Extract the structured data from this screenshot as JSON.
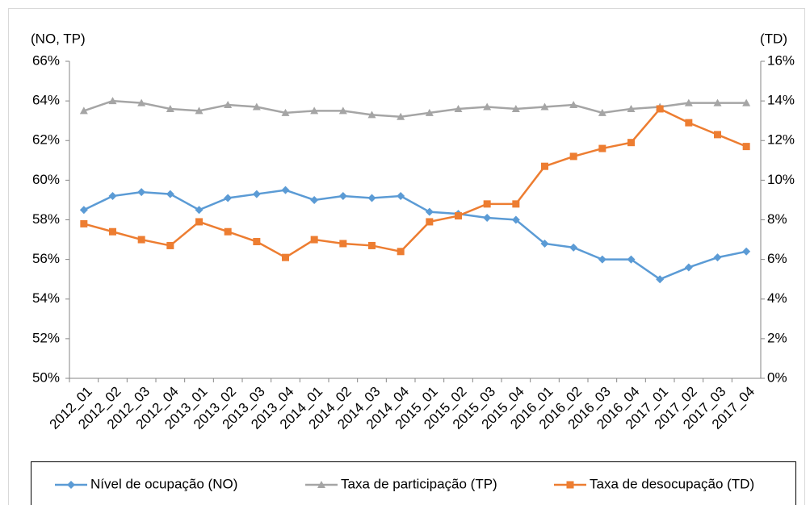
{
  "chart_data": {
    "type": "line",
    "y_label": "(NO, TP)",
    "y2_label": "(TD)",
    "categories": [
      "2012_01",
      "2012_02",
      "2012_03",
      "2012_04",
      "2013_01",
      "2013_02",
      "2013_03",
      "2013_04",
      "2014_01",
      "2014_02",
      "2014_03",
      "2014_04",
      "2015_01",
      "2015_02",
      "2015_03",
      "2015_04",
      "2016_01",
      "2016_02",
      "2016_03",
      "2016_04",
      "2017_01",
      "2017_02",
      "2017_03",
      "2017_04"
    ],
    "series": [
      {
        "name": "Nível de ocupação (NO)",
        "color": "#5b9bd5",
        "marker": "diamond",
        "axis": "y",
        "values": [
          58.5,
          59.2,
          59.4,
          59.3,
          58.5,
          59.1,
          59.3,
          59.5,
          59.0,
          59.2,
          59.1,
          59.2,
          58.4,
          58.3,
          58.1,
          58.0,
          56.8,
          56.6,
          56.0,
          56.0,
          55.0,
          55.6,
          56.1,
          56.4
        ]
      },
      {
        "name": "Taxa de participação (TP)",
        "color": "#a5a5a5",
        "marker": "triangle",
        "axis": "y",
        "values": [
          63.5,
          64.0,
          63.9,
          63.6,
          63.5,
          63.8,
          63.7,
          63.4,
          63.5,
          63.5,
          63.3,
          63.2,
          63.4,
          63.6,
          63.7,
          63.6,
          63.7,
          63.8,
          63.4,
          63.6,
          63.7,
          63.9,
          63.9,
          63.9
        ]
      },
      {
        "name": "Taxa de desocupação (TD)",
        "color": "#ed7d31",
        "marker": "square",
        "axis": "y2",
        "values": [
          7.8,
          7.4,
          7.0,
          6.7,
          7.9,
          7.4,
          6.9,
          6.1,
          7.0,
          6.8,
          6.7,
          6.4,
          7.9,
          8.2,
          8.8,
          8.8,
          10.7,
          11.2,
          11.6,
          11.9,
          13.6,
          12.9,
          12.3,
          11.7
        ]
      }
    ],
    "ylim": [
      50,
      66
    ],
    "yticks": [
      {
        "value": 50,
        "label": "50%"
      },
      {
        "value": 52,
        "label": "52%"
      },
      {
        "value": 54,
        "label": "54%"
      },
      {
        "value": 56,
        "label": "56%"
      },
      {
        "value": 58,
        "label": "58%"
      },
      {
        "value": 60,
        "label": "60%"
      },
      {
        "value": 62,
        "label": "62%"
      },
      {
        "value": 64,
        "label": "64%"
      },
      {
        "value": 66,
        "label": "66%"
      }
    ],
    "y2lim": [
      0,
      16
    ],
    "y2ticks": [
      {
        "value": 0,
        "label": "0%"
      },
      {
        "value": 2,
        "label": "2%"
      },
      {
        "value": 4,
        "label": "4%"
      },
      {
        "value": 6,
        "label": "6%"
      },
      {
        "value": 8,
        "label": "8%"
      },
      {
        "value": 10,
        "label": "10%"
      },
      {
        "value": 12,
        "label": "12%"
      },
      {
        "value": 14,
        "label": "14%"
      },
      {
        "value": 16,
        "label": "16%"
      }
    ],
    "grid": false,
    "legend": "bottom"
  }
}
